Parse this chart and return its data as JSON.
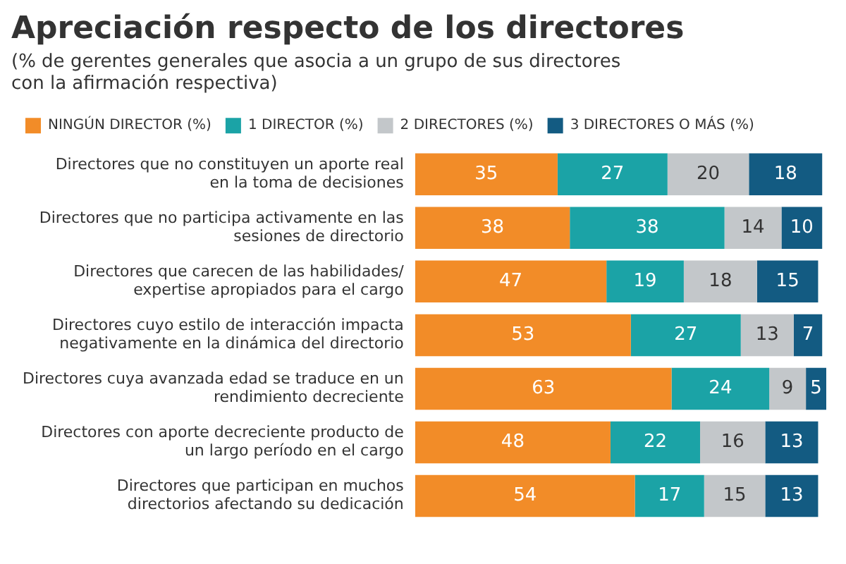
{
  "chart_data": {
    "type": "bar",
    "orientation": "horizontal",
    "stacked": true,
    "title": "Apreciación respecto de los directores",
    "subtitle": "(% de gerentes generales que asocia a un grupo de sus directores con la afirmación respectiva)",
    "categories": [
      "Directores que no constituyen un aporte real en la toma de decisiones",
      "Directores que no participa activamente en las sesiones de directorio",
      "Directores que carecen de las habilidades/ expertise apropiados para el cargo",
      "Directores cuyo estilo de interacción impacta negativamente en la dinámica del directorio",
      "Directores cuya avanzada edad se traduce en un rendimiento decreciente",
      "Directores con aporte decreciente producto de un largo período en el cargo",
      "Directores que participan en muchos directorios afectando su dedicación"
    ],
    "series": [
      {
        "name": "NINGÚN DIRECTOR (%)",
        "color": "#f28c28",
        "values": [
          35,
          38,
          47,
          53,
          63,
          48,
          54
        ]
      },
      {
        "name": "1 DIRECTOR (%)",
        "color": "#1ba3a6",
        "values": [
          27,
          38,
          19,
          27,
          24,
          22,
          17
        ]
      },
      {
        "name": "2 DIRECTORES (%)",
        "color": "#c3c7ca",
        "values": [
          20,
          14,
          18,
          13,
          9,
          16,
          15
        ]
      },
      {
        "name": "3 DIRECTORES O MÁS (%)",
        "color": "#135b82",
        "values": [
          18,
          10,
          15,
          7,
          5,
          13,
          13
        ]
      }
    ],
    "data_labels": true,
    "legend": "top",
    "grid": false,
    "tick_labels": "y"
  }
}
